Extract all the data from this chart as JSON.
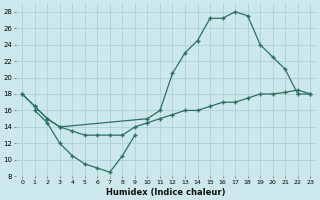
{
  "xlabel": "Humidex (Indice chaleur)",
  "background_color": "#cce8ec",
  "grid_color": "#a8cdd4",
  "line_color": "#2e7060",
  "xlim": [
    -0.5,
    23.5
  ],
  "ylim": [
    8,
    29
  ],
  "xticks": [
    0,
    1,
    2,
    3,
    4,
    5,
    6,
    7,
    8,
    9,
    10,
    11,
    12,
    13,
    14,
    15,
    16,
    17,
    18,
    19,
    20,
    21,
    22,
    23
  ],
  "yticks": [
    8,
    10,
    12,
    14,
    16,
    18,
    20,
    22,
    24,
    26,
    28
  ],
  "line1_x": [
    0,
    1,
    2,
    3,
    10,
    11,
    12,
    13,
    14,
    15,
    16,
    17,
    18,
    19,
    20,
    21,
    22,
    23
  ],
  "line1_y": [
    18,
    16.5,
    15,
    14,
    15,
    16,
    20.5,
    23,
    24.5,
    27.2,
    27.2,
    28.0,
    27.5,
    24.0,
    22.5,
    21.0,
    18.0,
    18.0
  ],
  "line2_x": [
    0,
    1,
    2,
    3,
    4,
    5,
    6,
    7,
    8,
    9,
    10,
    11,
    12,
    13,
    14,
    15,
    16,
    17,
    18,
    19,
    20,
    21,
    22,
    23
  ],
  "line2_y": [
    18,
    16.5,
    15,
    14,
    13.5,
    13,
    13,
    13,
    13,
    14,
    14.5,
    15,
    15.5,
    16,
    16,
    16.5,
    17,
    17,
    17.5,
    18,
    18,
    18.2,
    18.5,
    18.0
  ],
  "line3_x": [
    1,
    2,
    3,
    4,
    5,
    6,
    7,
    8,
    9
  ],
  "line3_y": [
    16,
    14.5,
    12,
    10.5,
    9.5,
    9.0,
    8.5,
    10.5,
    13.0
  ]
}
